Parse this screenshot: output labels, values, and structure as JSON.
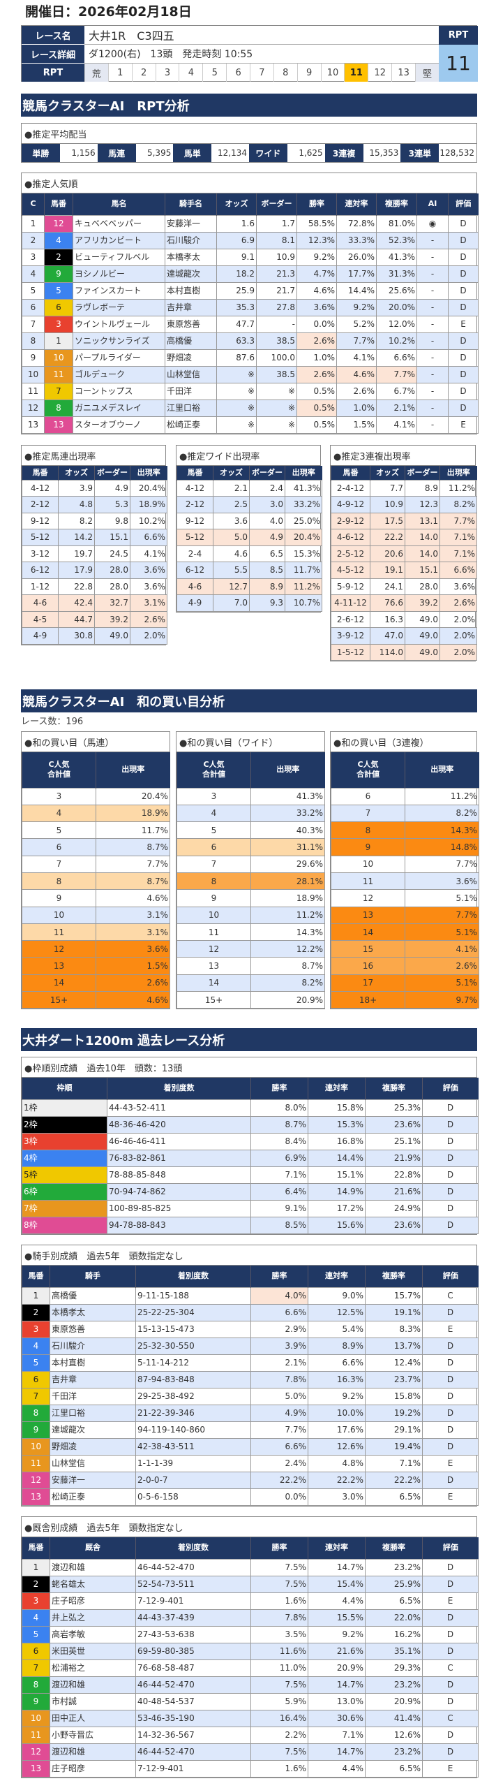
{
  "header": {
    "date": "開催日：2026年02月18日",
    "race_name_label": "レース名",
    "race_name": "大井1R　C3四五",
    "detail_label": "レース詳細",
    "detail": "ダ1200(右)　13頭　発走時刻 10:55",
    "rpt_label": "RPT",
    "rpt_head": "RPT",
    "rpt_value": "11",
    "rpt_scale": [
      "荒",
      "1",
      "2",
      "3",
      "4",
      "5",
      "6",
      "7",
      "8",
      "9",
      "10",
      "11",
      "12",
      "13",
      "堅"
    ],
    "rpt_current": "11"
  },
  "colors": {
    "navy": "#203864",
    "alt_row": "#dde8fb",
    "highlight": "#fce4d6",
    "rpt_current": "#ffc000",
    "frames": [
      "#eeeeee",
      "#000000",
      "#e8412f",
      "#3b82f0",
      "#f0c800",
      "#22aa3a",
      "#e8961e",
      "#e04c94"
    ]
  },
  "rpt": {
    "title": "競馬クラスターAI　RPT分析",
    "payout": {
      "title": "●推定平均配当",
      "items": [
        {
          "label": "単勝",
          "value": "1,156"
        },
        {
          "label": "馬連",
          "value": "5,395"
        },
        {
          "label": "馬単",
          "value": "12,134"
        },
        {
          "label": "ワイド",
          "value": "1,625"
        },
        {
          "label": "3連複",
          "value": "15,353"
        },
        {
          "label": "3連単",
          "value": "128,532"
        }
      ]
    },
    "popularity": {
      "title": "●推定人気順",
      "headers": [
        "C",
        "馬番",
        "馬名",
        "騎手名",
        "オッズ",
        "ボーダー",
        "勝率",
        "連対率",
        "複勝率",
        "AI",
        "評価"
      ],
      "rows": [
        {
          "cells": [
            "1",
            "12",
            "キュベベベッパー",
            "安藤洋一",
            "1.6",
            "1.7",
            "58.5%",
            "72.8%",
            "81.0%",
            "◉",
            "D"
          ]
        },
        {
          "cells": [
            "2",
            "4",
            "アフリカンビート",
            "石川駿介",
            "6.9",
            "8.1",
            "12.3%",
            "33.3%",
            "52.3%",
            "-",
            "D"
          ]
        },
        {
          "cells": [
            "3",
            "2",
            "ビューティフルベル",
            "本橋孝太",
            "9.1",
            "10.9",
            "9.2%",
            "26.0%",
            "41.3%",
            "-",
            "D"
          ]
        },
        {
          "cells": [
            "4",
            "9",
            "ヨシノルビー",
            "達城龍次",
            "18.2",
            "21.3",
            "4.7%",
            "17.7%",
            "31.3%",
            "-",
            "D"
          ]
        },
        {
          "cells": [
            "5",
            "5",
            "ファインスカート",
            "本村直樹",
            "25.9",
            "21.7",
            "4.6%",
            "14.4%",
            "25.6%",
            "-",
            "D"
          ]
        },
        {
          "cells": [
            "6",
            "6",
            "ラヴレボーテ",
            "吉井章",
            "35.3",
            "27.8",
            "3.6%",
            "9.2%",
            "20.0%",
            "-",
            "D"
          ]
        },
        {
          "cells": [
            "7",
            "3",
            "ウイントルヴェール",
            "東原悠善",
            "47.7",
            "-",
            "0.0%",
            "5.2%",
            "12.0%",
            "-",
            "E"
          ]
        },
        {
          "cells": [
            "8",
            "1",
            "ソニックサンライズ",
            "高橋優",
            "63.3",
            "38.5",
            "2.6%",
            "7.7%",
            "10.2%",
            "-",
            "D"
          ],
          "hl": [
            6
          ]
        },
        {
          "cells": [
            "9",
            "10",
            "パープルライダー",
            "野畑凌",
            "87.6",
            "100.0",
            "1.0%",
            "4.1%",
            "6.6%",
            "-",
            "D"
          ]
        },
        {
          "cells": [
            "10",
            "11",
            "ゴルデューク",
            "山林堂信",
            "※",
            "38.5",
            "2.6%",
            "4.6%",
            "7.7%",
            "-",
            "D"
          ],
          "hl": [
            6,
            7,
            8
          ]
        },
        {
          "cells": [
            "11",
            "7",
            "コーントップス",
            "千田洋",
            "※",
            "※",
            "0.5%",
            "2.6%",
            "6.7%",
            "-",
            "D"
          ]
        },
        {
          "cells": [
            "12",
            "8",
            "ガニユメデスレイ",
            "江里口裕",
            "※",
            "※",
            "0.5%",
            "1.0%",
            "2.1%",
            "-",
            "D"
          ],
          "hl": [
            6
          ]
        },
        {
          "cells": [
            "13",
            "13",
            "スターオブウーノ",
            "松崎正泰",
            "※",
            "※",
            "0.5%",
            "1.5%",
            "4.1%",
            "-",
            "E"
          ]
        }
      ]
    },
    "umaren": {
      "title": "●推定馬連出現率",
      "headers": [
        "馬番",
        "オッズ",
        "ボーダー",
        "出現率"
      ],
      "rows": [
        {
          "cells": [
            "4-12",
            "3.9",
            "4.9",
            "20.4%"
          ]
        },
        {
          "cells": [
            "2-12",
            "4.8",
            "5.3",
            "18.9%"
          ]
        },
        {
          "cells": [
            "9-12",
            "8.2",
            "9.8",
            "10.2%"
          ]
        },
        {
          "cells": [
            "5-12",
            "14.2",
            "15.1",
            "6.6%"
          ]
        },
        {
          "cells": [
            "3-12",
            "19.7",
            "24.5",
            "4.1%"
          ]
        },
        {
          "cells": [
            "6-12",
            "17.9",
            "28.0",
            "3.6%"
          ]
        },
        {
          "cells": [
            "1-12",
            "22.8",
            "28.0",
            "3.6%"
          ]
        },
        {
          "cells": [
            "4-6",
            "42.4",
            "32.7",
            "3.1%"
          ],
          "hlrow": true
        },
        {
          "cells": [
            "4-5",
            "44.7",
            "39.2",
            "2.6%"
          ],
          "hlrow": true
        },
        {
          "cells": [
            "4-9",
            "30.8",
            "49.0",
            "2.0%"
          ]
        }
      ]
    },
    "wide": {
      "title": "●推定ワイド出現率",
      "headers": [
        "馬番",
        "オッズ",
        "ボーダー",
        "出現率"
      ],
      "rows": [
        {
          "cells": [
            "4-12",
            "2.1",
            "2.4",
            "41.3%"
          ]
        },
        {
          "cells": [
            "2-12",
            "2.5",
            "3.0",
            "33.2%"
          ]
        },
        {
          "cells": [
            "9-12",
            "3.6",
            "4.0",
            "25.0%"
          ]
        },
        {
          "cells": [
            "5-12",
            "5.0",
            "4.9",
            "20.4%"
          ],
          "hlrow": true
        },
        {
          "cells": [
            "2-4",
            "4.6",
            "6.5",
            "15.3%"
          ]
        },
        {
          "cells": [
            "6-12",
            "5.5",
            "8.5",
            "11.7%"
          ]
        },
        {
          "cells": [
            "4-6",
            "12.7",
            "8.9",
            "11.2%"
          ],
          "hlrow": true
        },
        {
          "cells": [
            "4-9",
            "7.0",
            "9.3",
            "10.7%"
          ]
        }
      ]
    },
    "sanrenpuku": {
      "title": "●推定3連複出現率",
      "headers": [
        "馬番",
        "オッズ",
        "ボーダー",
        "出現率"
      ],
      "rows": [
        {
          "cells": [
            "2-4-12",
            "7.7",
            "8.9",
            "11.2%"
          ]
        },
        {
          "cells": [
            "4-9-12",
            "10.9",
            "12.3",
            "8.2%"
          ]
        },
        {
          "cells": [
            "2-9-12",
            "17.5",
            "13.1",
            "7.7%"
          ],
          "hlrow": true
        },
        {
          "cells": [
            "4-6-12",
            "22.2",
            "14.0",
            "7.1%"
          ],
          "hlrow": true
        },
        {
          "cells": [
            "2-5-12",
            "20.6",
            "14.0",
            "7.1%"
          ],
          "hlrow": true
        },
        {
          "cells": [
            "4-5-12",
            "19.1",
            "15.1",
            "6.6%"
          ],
          "hlrow": true
        },
        {
          "cells": [
            "5-9-12",
            "24.1",
            "28.0",
            "3.6%"
          ]
        },
        {
          "cells": [
            "4-11-12",
            "76.6",
            "39.2",
            "2.6%"
          ],
          "hlrow": true
        },
        {
          "cells": [
            "2-6-12",
            "16.3",
            "49.0",
            "2.0%"
          ]
        },
        {
          "cells": [
            "3-9-12",
            "47.0",
            "49.0",
            "2.0%"
          ]
        },
        {
          "cells": [
            "1-5-12",
            "114.0",
            "49.0",
            "2.0%"
          ],
          "hlrow": true
        }
      ]
    }
  },
  "sum": {
    "title": "競馬クラスターAI　和の買い目分析",
    "race_count": "レース数：196",
    "headers": [
      "C人気\n合計値",
      "出現率"
    ],
    "umaren": {
      "title": "●和の買い目（馬連）",
      "rows": [
        [
          "3",
          "20.4%",
          0
        ],
        [
          "4",
          "18.9%",
          1
        ],
        [
          "5",
          "11.7%",
          0
        ],
        [
          "6",
          "8.7%",
          0
        ],
        [
          "7",
          "7.7%",
          0
        ],
        [
          "8",
          "8.7%",
          1
        ],
        [
          "9",
          "4.6%",
          0
        ],
        [
          "10",
          "3.1%",
          0
        ],
        [
          "11",
          "3.1%",
          1
        ],
        [
          "12",
          "3.6%",
          3
        ],
        [
          "13",
          "1.5%",
          3
        ],
        [
          "14",
          "2.6%",
          3
        ],
        [
          "15+",
          "4.6%",
          3
        ]
      ]
    },
    "wide": {
      "title": "●和の買い目（ワイド）",
      "rows": [
        [
          "3",
          "41.3%",
          0
        ],
        [
          "4",
          "33.2%",
          0
        ],
        [
          "5",
          "40.3%",
          0
        ],
        [
          "6",
          "31.1%",
          1
        ],
        [
          "7",
          "29.6%",
          0
        ],
        [
          "8",
          "28.1%",
          2
        ],
        [
          "9",
          "18.9%",
          0
        ],
        [
          "10",
          "11.2%",
          0
        ],
        [
          "11",
          "14.3%",
          0
        ],
        [
          "12",
          "12.2%",
          0
        ],
        [
          "13",
          "8.7%",
          0
        ],
        [
          "14",
          "8.2%",
          0
        ],
        [
          "15+",
          "20.9%",
          0
        ]
      ]
    },
    "sanrenpuku": {
      "title": "●和の買い目（3連複）",
      "rows": [
        [
          "6",
          "11.2%",
          0
        ],
        [
          "7",
          "8.2%",
          0
        ],
        [
          "8",
          "14.3%",
          3
        ],
        [
          "9",
          "14.8%",
          3
        ],
        [
          "10",
          "7.7%",
          0
        ],
        [
          "11",
          "3.6%",
          0
        ],
        [
          "12",
          "5.1%",
          0
        ],
        [
          "13",
          "7.7%",
          3
        ],
        [
          "14",
          "5.1%",
          3
        ],
        [
          "15",
          "4.1%",
          2
        ],
        [
          "16",
          "2.6%",
          2
        ],
        [
          "17",
          "5.1%",
          3
        ],
        [
          "18+",
          "9.7%",
          3
        ]
      ]
    }
  },
  "past": {
    "title": "大井ダート1200m 過去レース分析",
    "frame": {
      "title": "●枠順別成績　過去10年　頭数：13頭",
      "headers": [
        "枠順",
        "着別度数",
        "勝率",
        "連対率",
        "複勝率",
        "評価"
      ],
      "rows": [
        {
          "cells": [
            "1枠",
            "44-43-52-411",
            "8.0%",
            "15.8%",
            "25.3%",
            "D"
          ]
        },
        {
          "cells": [
            "2枠",
            "48-36-46-420",
            "8.7%",
            "15.3%",
            "23.6%",
            "D"
          ]
        },
        {
          "cells": [
            "3枠",
            "46-46-46-411",
            "8.4%",
            "16.8%",
            "25.1%",
            "D"
          ]
        },
        {
          "cells": [
            "4枠",
            "76-83-82-861",
            "6.9%",
            "14.4%",
            "21.9%",
            "D"
          ]
        },
        {
          "cells": [
            "5枠",
            "78-88-85-848",
            "7.1%",
            "15.1%",
            "22.8%",
            "D"
          ]
        },
        {
          "cells": [
            "6枠",
            "70-94-74-862",
            "6.4%",
            "14.9%",
            "21.6%",
            "D"
          ]
        },
        {
          "cells": [
            "7枠",
            "100-89-85-825",
            "9.1%",
            "17.2%",
            "24.9%",
            "D"
          ]
        },
        {
          "cells": [
            "8枠",
            "94-78-88-843",
            "8.5%",
            "15.6%",
            "23.6%",
            "D"
          ]
        }
      ]
    },
    "jockey": {
      "title": "●騎手別成績　過去5年　頭数指定なし",
      "headers": [
        "馬番",
        "騎手",
        "着別度数",
        "勝率",
        "連対率",
        "複勝率",
        "評価"
      ],
      "rows": [
        {
          "cells": [
            "1",
            "高橋優",
            "9-11-15-188",
            "4.0%",
            "9.0%",
            "15.7%",
            "C"
          ],
          "hl": [
            3
          ]
        },
        {
          "cells": [
            "2",
            "本橋孝太",
            "25-22-25-304",
            "6.6%",
            "12.5%",
            "19.1%",
            "D"
          ]
        },
        {
          "cells": [
            "3",
            "東原悠善",
            "15-13-15-473",
            "2.9%",
            "5.4%",
            "8.3%",
            "E"
          ]
        },
        {
          "cells": [
            "4",
            "石川駿介",
            "25-32-30-550",
            "3.9%",
            "8.9%",
            "13.7%",
            "D"
          ]
        },
        {
          "cells": [
            "5",
            "本村直樹",
            "5-11-14-212",
            "2.1%",
            "6.6%",
            "12.4%",
            "D"
          ]
        },
        {
          "cells": [
            "6",
            "吉井章",
            "87-94-83-848",
            "7.8%",
            "16.3%",
            "23.7%",
            "D"
          ]
        },
        {
          "cells": [
            "7",
            "千田洋",
            "29-25-38-492",
            "5.0%",
            "9.2%",
            "15.8%",
            "D"
          ]
        },
        {
          "cells": [
            "8",
            "江里口裕",
            "21-22-39-346",
            "4.9%",
            "10.0%",
            "19.2%",
            "D"
          ]
        },
        {
          "cells": [
            "9",
            "達城龍次",
            "94-119-140-860",
            "7.7%",
            "17.6%",
            "29.1%",
            "D"
          ]
        },
        {
          "cells": [
            "10",
            "野畑凌",
            "42-38-43-511",
            "6.6%",
            "12.6%",
            "19.4%",
            "D"
          ]
        },
        {
          "cells": [
            "11",
            "山林堂信",
            "1-1-1-39",
            "2.4%",
            "4.8%",
            "7.1%",
            "E"
          ]
        },
        {
          "cells": [
            "12",
            "安藤洋一",
            "2-0-0-7",
            "22.2%",
            "22.2%",
            "22.2%",
            "D"
          ]
        },
        {
          "cells": [
            "13",
            "松崎正泰",
            "0-5-6-158",
            "0.0%",
            "3.0%",
            "6.5%",
            "E"
          ]
        }
      ]
    },
    "stable": {
      "title": "●厩舎別成績　過去5年　頭数指定なし",
      "headers": [
        "馬番",
        "厩舎",
        "着別度数",
        "勝率",
        "連対率",
        "複勝率",
        "評価"
      ],
      "rows": [
        {
          "cells": [
            "1",
            "渡辺和雄",
            "46-44-52-470",
            "7.5%",
            "14.7%",
            "23.2%",
            "D"
          ]
        },
        {
          "cells": [
            "2",
            "蛯名雄太",
            "52-54-73-511",
            "7.5%",
            "15.4%",
            "25.9%",
            "D"
          ]
        },
        {
          "cells": [
            "3",
            "庄子昭彦",
            "7-12-9-401",
            "1.6%",
            "4.4%",
            "6.5%",
            "E"
          ]
        },
        {
          "cells": [
            "4",
            "井上弘之",
            "44-43-37-439",
            "7.8%",
            "15.5%",
            "22.0%",
            "D"
          ]
        },
        {
          "cells": [
            "5",
            "高岩孝敏",
            "27-43-53-638",
            "3.5%",
            "9.2%",
            "16.2%",
            "D"
          ]
        },
        {
          "cells": [
            "6",
            "米田英世",
            "69-59-80-385",
            "11.6%",
            "21.6%",
            "35.1%",
            "D"
          ]
        },
        {
          "cells": [
            "7",
            "松浦裕之",
            "76-68-58-487",
            "11.0%",
            "20.9%",
            "29.3%",
            "C"
          ]
        },
        {
          "cells": [
            "8",
            "渡辺和雄",
            "46-44-52-470",
            "7.5%",
            "14.7%",
            "23.2%",
            "D"
          ]
        },
        {
          "cells": [
            "9",
            "市村誠",
            "40-48-54-537",
            "5.9%",
            "13.0%",
            "20.9%",
            "D"
          ]
        },
        {
          "cells": [
            "10",
            "田中正人",
            "53-46-35-190",
            "16.4%",
            "30.6%",
            "41.4%",
            "C"
          ]
        },
        {
          "cells": [
            "11",
            "小野寺晋広",
            "14-32-36-567",
            "2.2%",
            "7.1%",
            "12.6%",
            "D"
          ]
        },
        {
          "cells": [
            "12",
            "渡辺和雄",
            "46-44-52-470",
            "7.5%",
            "14.7%",
            "23.2%",
            "D"
          ]
        },
        {
          "cells": [
            "13",
            "庄子昭彦",
            "7-12-9-401",
            "1.6%",
            "4.4%",
            "6.5%",
            "E"
          ]
        }
      ]
    }
  }
}
